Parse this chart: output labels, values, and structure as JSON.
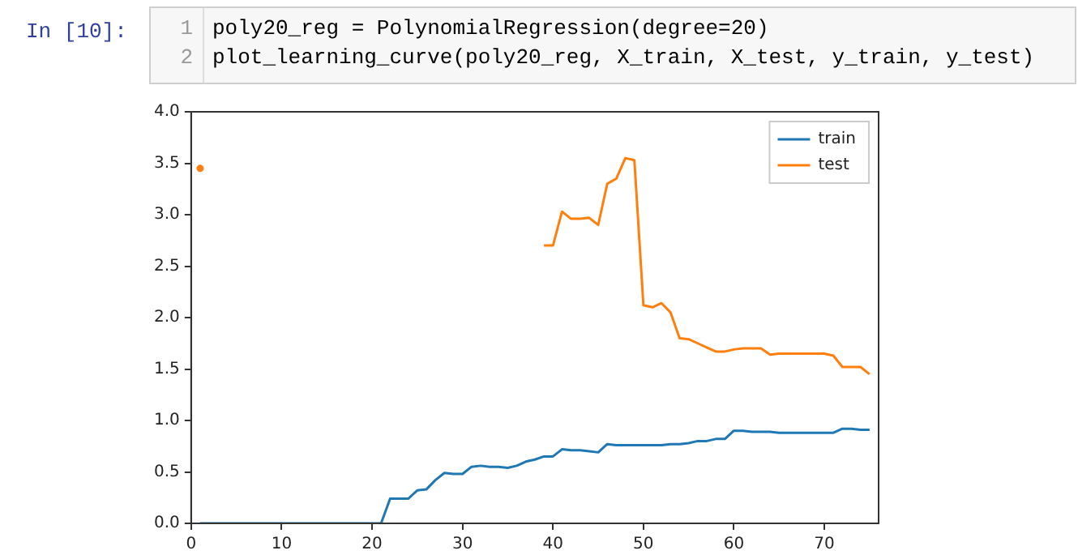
{
  "chart_data": {
    "type": "line",
    "annotations": [
      "In [10]:",
      "1",
      "poly20_reg = PolynomialRegression(degree=20)",
      "2",
      "plot_learning_curve(poly20_reg, X_train, X_test, y_train, y_test)"
    ],
    "x": [
      1,
      2,
      3,
      4,
      5,
      6,
      7,
      8,
      9,
      10,
      11,
      12,
      13,
      14,
      15,
      16,
      17,
      18,
      19,
      20,
      21,
      22,
      23,
      24,
      25,
      26,
      27,
      28,
      29,
      30,
      31,
      32,
      33,
      34,
      35,
      36,
      37,
      38,
      39,
      40,
      41,
      42,
      43,
      44,
      45,
      46,
      47,
      48,
      49,
      50,
      51,
      52,
      53,
      54,
      55,
      56,
      57,
      58,
      59,
      60,
      61,
      62,
      63,
      64,
      65,
      66,
      67,
      68,
      69,
      70,
      71,
      72,
      73,
      74,
      75
    ],
    "series": [
      {
        "name": "train",
        "color": "#1f77b4",
        "values": [
          0,
          0,
          0,
          0,
          0,
          0,
          0,
          0,
          0,
          0,
          0,
          0,
          0,
          0,
          0,
          0,
          0,
          0,
          0,
          0,
          0,
          0.24,
          0.24,
          0.24,
          0.32,
          0.33,
          0.42,
          0.49,
          0.48,
          0.48,
          0.55,
          0.56,
          0.55,
          0.55,
          0.54,
          0.56,
          0.6,
          0.62,
          0.65,
          0.65,
          0.72,
          0.71,
          0.71,
          0.7,
          0.69,
          0.77,
          0.76,
          0.76,
          0.76,
          0.76,
          0.76,
          0.76,
          0.77,
          0.77,
          0.78,
          0.8,
          0.8,
          0.82,
          0.82,
          0.9,
          0.9,
          0.89,
          0.89,
          0.89,
          0.88,
          0.88,
          0.88,
          0.88,
          0.88,
          0.88,
          0.88,
          0.92,
          0.92,
          0.91,
          0.91
        ]
      },
      {
        "name": "test",
        "color": "#ff7f0e",
        "values": [
          3.45,
          null,
          null,
          null,
          null,
          null,
          null,
          null,
          null,
          null,
          null,
          null,
          null,
          null,
          null,
          null,
          null,
          null,
          null,
          null,
          null,
          null,
          null,
          null,
          null,
          null,
          null,
          null,
          null,
          null,
          null,
          null,
          null,
          null,
          null,
          null,
          null,
          null,
          2.7,
          2.7,
          3.03,
          2.96,
          2.96,
          2.97,
          2.9,
          3.3,
          3.35,
          3.55,
          3.53,
          2.12,
          2.1,
          2.14,
          2.05,
          1.8,
          1.79,
          1.75,
          1.71,
          1.67,
          1.67,
          1.69,
          1.7,
          1.7,
          1.7,
          1.64,
          1.65,
          1.65,
          1.65,
          1.65,
          1.65,
          1.65,
          1.63,
          1.52,
          1.52,
          1.52,
          1.45
        ]
      }
    ],
    "xlim": [
      0,
      76
    ],
    "xticks": [
      0,
      10,
      20,
      30,
      40,
      50,
      60,
      70
    ],
    "ylim": [
      0,
      4
    ],
    "yticks": [
      {
        "value": 0,
        "label": "0.0"
      },
      0.5,
      {
        "value": 1,
        "label": "1.0"
      },
      1.5,
      {
        "value": 2,
        "label": "2.0"
      },
      2.5,
      {
        "value": 3,
        "label": "3.0"
      },
      3.5,
      {
        "value": 4,
        "label": "4.0"
      }
    ],
    "legend": "top right",
    "grid": false,
    "marker": "none",
    "line_style": "solid"
  }
}
